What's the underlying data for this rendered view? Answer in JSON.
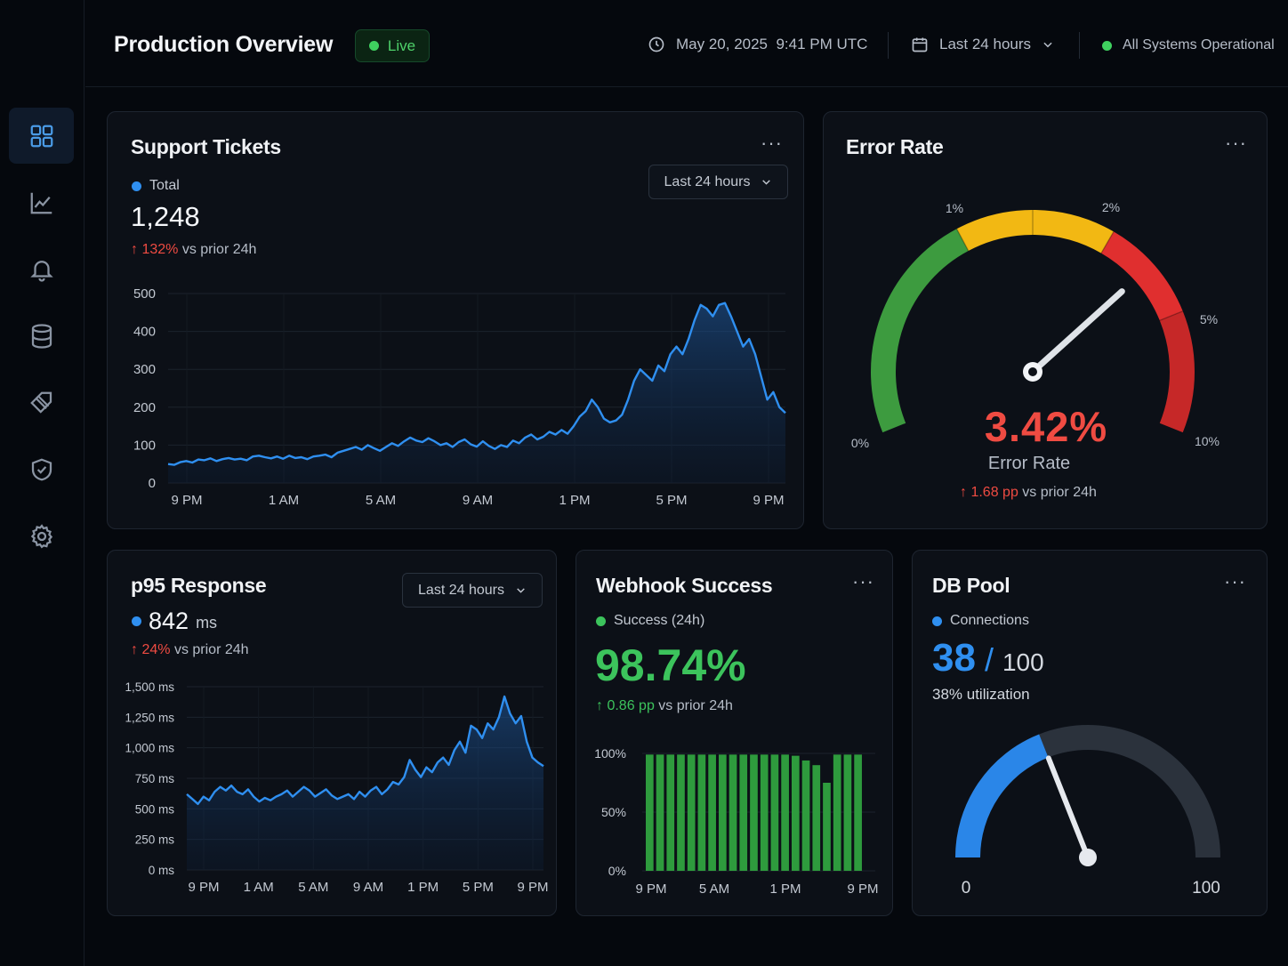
{
  "header": {
    "title": "Production Overview",
    "live_label": "Live",
    "datetime": "May 20, 2025  9:41 PM UTC",
    "range_label": "Last 24 hours",
    "status_label": "All Systems Operational"
  },
  "colors": {
    "accent_blue": "#2f8ff0",
    "live_green": "#3fd15f",
    "alert_red": "#ef4b42",
    "success_green": "#3cc35c",
    "gauge_green": "#3d9b3f",
    "gauge_yellow": "#f2b813",
    "gauge_red": "#e02f2f"
  },
  "sidebar": {
    "items": [
      {
        "icon": "dashboard-grid-icon",
        "active": true
      },
      {
        "icon": "line-chart-icon"
      },
      {
        "icon": "bell-icon"
      },
      {
        "icon": "database-icon"
      },
      {
        "icon": "tag-icon"
      },
      {
        "icon": "shield-check-icon"
      },
      {
        "icon": "gear-icon"
      }
    ]
  },
  "support_tickets": {
    "title": "Support Tickets",
    "menu": "···",
    "range_label": "Last 24 hours",
    "legend": "Total",
    "value": "1,248",
    "delta_value": "132%",
    "delta_suffix": "vs prior 24h"
  },
  "error_rate": {
    "title": "Error Rate",
    "menu": "···",
    "value": "3.42%",
    "label": "Error Rate",
    "delta_value": "1.68 pp",
    "delta_suffix": "vs prior 24h",
    "gauge_value": 3.42,
    "tick_labels": [
      "0%",
      "1%",
      "2%",
      "5%",
      "10%"
    ]
  },
  "p95": {
    "title": "p95 Response",
    "range_label": "Last 24 hours",
    "value": "842",
    "unit": "ms",
    "delta_value": "24%",
    "delta_suffix": "vs prior 24h"
  },
  "webhook": {
    "title": "Webhook Success",
    "menu": "···",
    "legend": "Success (24h)",
    "value": "98.74%",
    "delta_value": "0.86 pp",
    "delta_suffix": "vs prior 24h"
  },
  "db_pool": {
    "title": "DB Pool",
    "menu": "···",
    "legend": "Connections",
    "value": "38",
    "slash": "/",
    "max": "100",
    "utilization": "38% utilization",
    "gauge_value": 38,
    "gauge_max": 100,
    "min_label": "0",
    "max_label": "100"
  },
  "chart_data": [
    {
      "id": "support-tickets",
      "type": "area",
      "x_ticks": [
        "9 PM",
        "1 AM",
        "5 AM",
        "9 AM",
        "1 PM",
        "5 PM",
        "9 PM"
      ],
      "y_ticks": [
        "0",
        "100",
        "200",
        "300",
        "400",
        "500"
      ],
      "ylim": [
        0,
        500
      ],
      "grid": true,
      "series": [
        {
          "values": [
            50,
            48,
            55,
            58,
            54,
            62,
            60,
            65,
            58,
            63,
            66,
            62,
            64,
            60,
            70,
            72,
            68,
            65,
            70,
            64,
            72,
            66,
            68,
            63,
            70,
            72,
            75,
            68,
            80,
            85,
            90,
            95,
            88,
            100,
            92,
            85,
            95,
            105,
            98,
            110,
            120,
            112,
            108,
            118,
            110,
            100,
            105,
            95,
            108,
            115,
            102,
            96,
            110,
            98,
            90,
            100,
            95,
            112,
            105,
            120,
            128,
            115,
            122,
            135,
            128,
            140,
            130,
            150,
            175,
            190,
            220,
            200,
            170,
            160,
            165,
            180,
            220,
            270,
            300,
            285,
            270,
            310,
            295,
            340,
            360,
            340,
            380,
            430,
            470,
            460,
            440,
            470,
            475,
            440,
            400,
            360,
            380,
            340,
            280,
            220,
            240,
            200,
            185
          ]
        }
      ]
    },
    {
      "id": "p95-response",
      "type": "area",
      "x_ticks": [
        "9 PM",
        "1 AM",
        "5 AM",
        "9 AM",
        "1 PM",
        "5 PM",
        "9 PM"
      ],
      "y_ticks": [
        "0 ms",
        "250 ms",
        "500 ms",
        "750 ms",
        "1,000 ms",
        "1,250 ms",
        "1,500 ms"
      ],
      "ylim": [
        0,
        1500
      ],
      "grid": true,
      "series": [
        {
          "values": [
            620,
            580,
            540,
            600,
            570,
            640,
            680,
            650,
            690,
            640,
            620,
            660,
            600,
            560,
            590,
            570,
            600,
            620,
            650,
            600,
            640,
            680,
            650,
            600,
            630,
            660,
            610,
            580,
            600,
            620,
            580,
            640,
            600,
            650,
            680,
            620,
            660,
            720,
            700,
            760,
            900,
            820,
            760,
            840,
            800,
            880,
            920,
            860,
            980,
            1050,
            960,
            1180,
            1150,
            1080,
            1200,
            1150,
            1250,
            1420,
            1280,
            1200,
            1260,
            1050,
            920,
            880,
            850
          ]
        }
      ]
    },
    {
      "id": "webhook-success",
      "type": "bar",
      "x_ticks": [
        "9 PM",
        "5 AM",
        "1 PM",
        "9 PM"
      ],
      "y_ticks": [
        "0%",
        "50%",
        "100%"
      ],
      "ylim": [
        0,
        100
      ],
      "grid": true,
      "values": [
        99,
        99,
        99,
        99,
        99,
        99,
        99,
        99,
        99,
        99,
        99,
        99,
        99,
        99,
        98,
        94,
        90,
        75,
        99,
        99,
        99
      ]
    }
  ]
}
